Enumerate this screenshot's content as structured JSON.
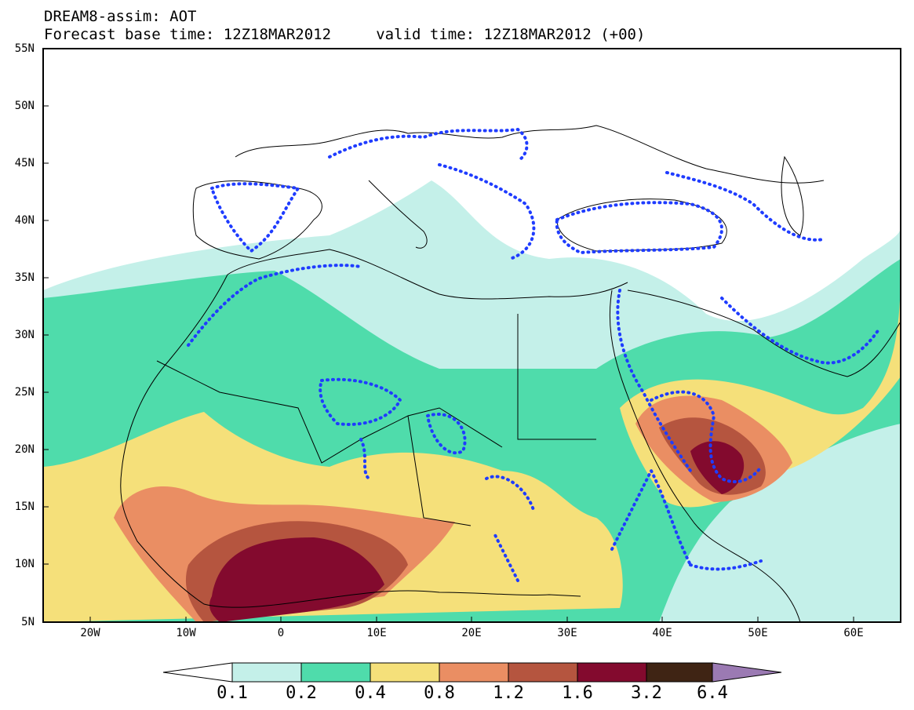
{
  "header": {
    "title_line1": "DREAM8-assim: AOT",
    "title_line2": "Forecast base time: 12Z18MAR2012     valid time: 12Z18MAR2012 (+00)"
  },
  "map": {
    "lat_labels": [
      "55N",
      "50N",
      "45N",
      "40N",
      "35N",
      "30N",
      "25N",
      "20N",
      "15N",
      "10N",
      "5N"
    ],
    "lon_labels": [
      "20W",
      "10W",
      "0",
      "10E",
      "20E",
      "30E",
      "40E",
      "50E",
      "60E"
    ]
  },
  "colorbar": {
    "levels": [
      "0.1",
      "0.2",
      "0.4",
      "0.8",
      "1.2",
      "1.6",
      "3.2",
      "6.4"
    ],
    "colors": {
      "below": "#ffffff",
      "c1": "#c4f0e9",
      "c2": "#4fdcab",
      "c3": "#f5e07a",
      "c4": "#ea8e63",
      "c5": "#b5553f",
      "c6": "#830a2e",
      "c7": "#3f2414",
      "above": "#9b7ab3"
    }
  },
  "overlay": {
    "dotted_line_color": "#1f3cff"
  }
}
